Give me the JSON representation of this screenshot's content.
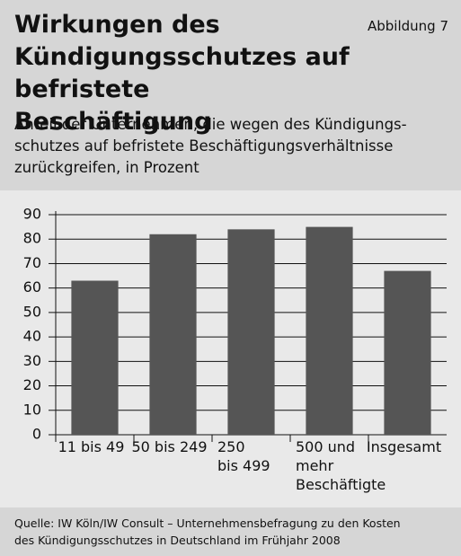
{
  "chart_data": {
    "type": "bar",
    "title": "Wirkungen des\nKündigungsschutzes auf befristete\nBeschäftigung",
    "figure_label": "Abbildung 7",
    "subtitle": "Anteil der Unternehmen, die wegen des Kündigungs-\nschutzes auf befristete Beschäftigungsverhältnisse\nzurückgreifen, in Prozent",
    "categories": [
      "11 bis 49",
      "50 bis 249",
      "250\nbis 499",
      "500 und\nmehr\nBeschäftigte",
      "Insgesamt"
    ],
    "values": [
      63,
      82,
      84,
      85,
      67
    ],
    "color": "#555555",
    "ylim": [
      0,
      90
    ],
    "yticks": [
      0,
      10,
      20,
      30,
      40,
      50,
      60,
      70,
      80,
      90
    ],
    "grid": true,
    "source": "Quelle: IW Köln/IW Consult – Unternehmensbefragung zu den Kosten\ndes Kündigungsschutzes in Deutschland im Frühjahr 2008"
  }
}
